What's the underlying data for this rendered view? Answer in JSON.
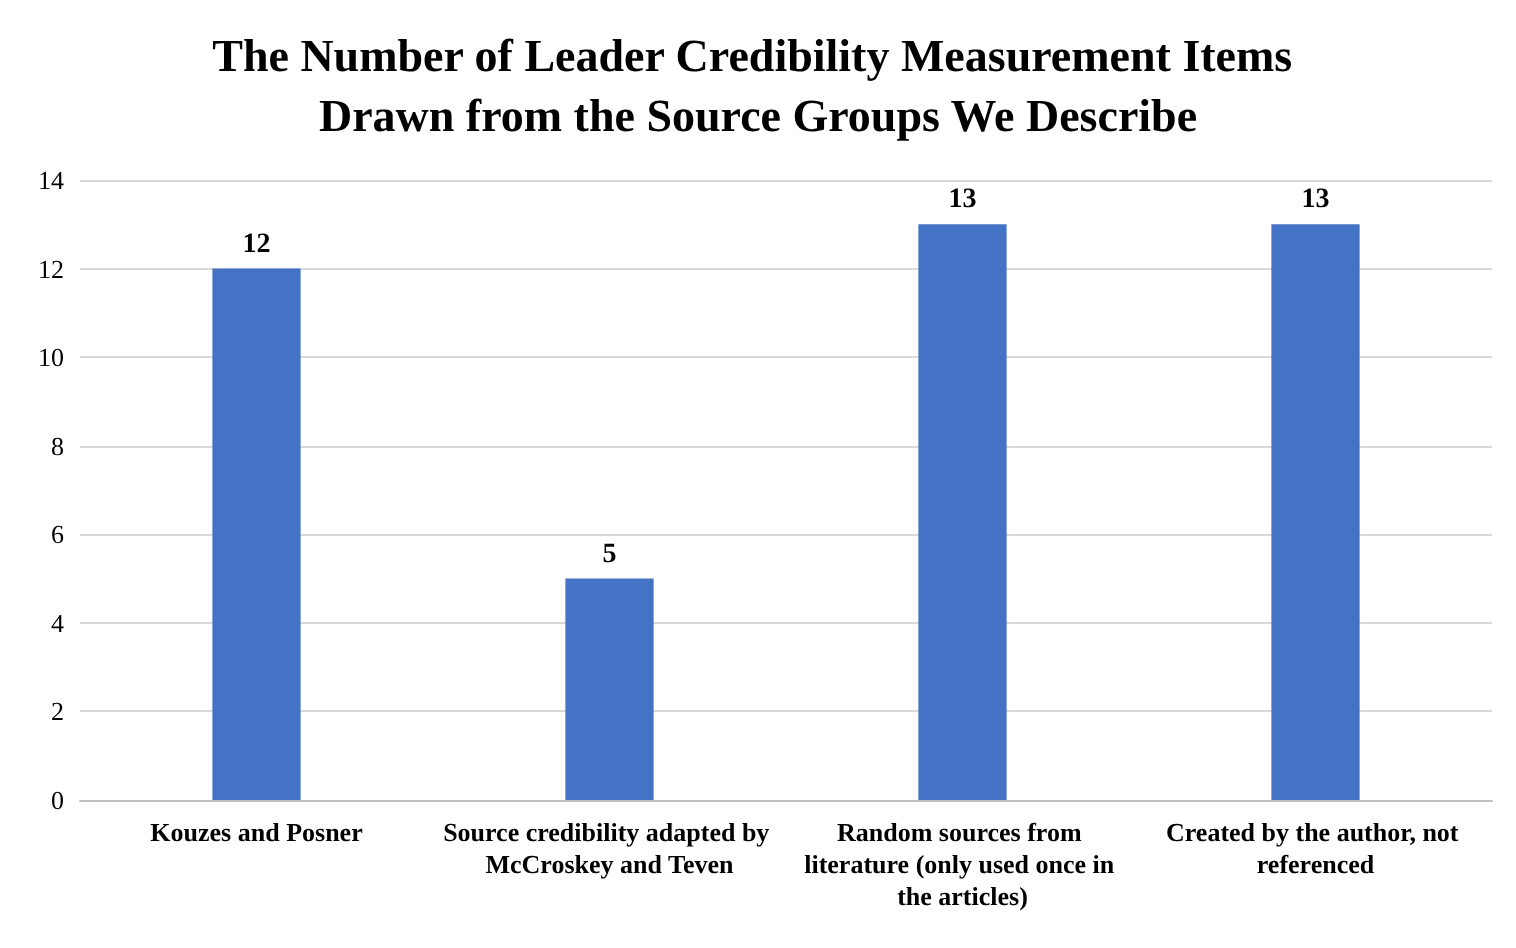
{
  "chart_data": {
    "type": "bar",
    "title": "The Number of Leader Credibility Measurement Items Drawn from the Source Groups We Describe",
    "categories": [
      "Kouzes and Posner",
      "Source credibility adapted by McCroskey and Teven",
      "Random sources from literature (only used once in the articles)",
      "Created by the author, not referenced"
    ],
    "values": [
      12,
      5,
      13,
      13
    ],
    "color": "#4472c4",
    "ylim": [
      0,
      14
    ],
    "yticks": [
      0,
      2,
      4,
      6,
      8,
      10,
      12,
      14
    ],
    "grid": "y",
    "data_labels": true
  }
}
